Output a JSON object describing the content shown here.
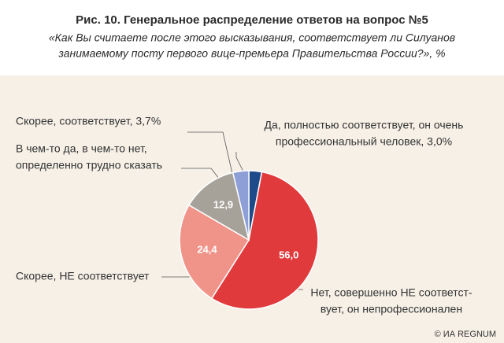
{
  "chart_data": {
    "type": "pie",
    "title": "Рис. 10. Генеральное распределение ответов на вопрос №5",
    "subtitle": [
      "«Как Вы считаете после этого высказывания, соответствует ли Силуанов",
      "занимаемому посту первого вице-премьера Правительства России?», %"
    ],
    "categories": [
      [
        "Да, полностью соответствует, он очень",
        "профессиональный человек, 3,0%"
      ],
      [
        "Нет, совершенно НЕ соответст-",
        "вует, он непрофессионален"
      ],
      [
        "Скорее, НЕ соответствует"
      ],
      [
        "В чем-то да, в чем-то нет,",
        "определенно трудно сказать"
      ],
      [
        "Скорее, соответствует, 3,7%"
      ]
    ],
    "values": [
      3.0,
      56.0,
      24.4,
      12.9,
      3.7
    ],
    "value_labels": [
      null,
      "56,0",
      "24,4",
      "12,9",
      null
    ],
    "colors": [
      "#1f4a8a",
      "#e03a3c",
      "#f0948a",
      "#a6a29a",
      "#8e9ed6"
    ],
    "source": "© ИА REGNUM"
  }
}
